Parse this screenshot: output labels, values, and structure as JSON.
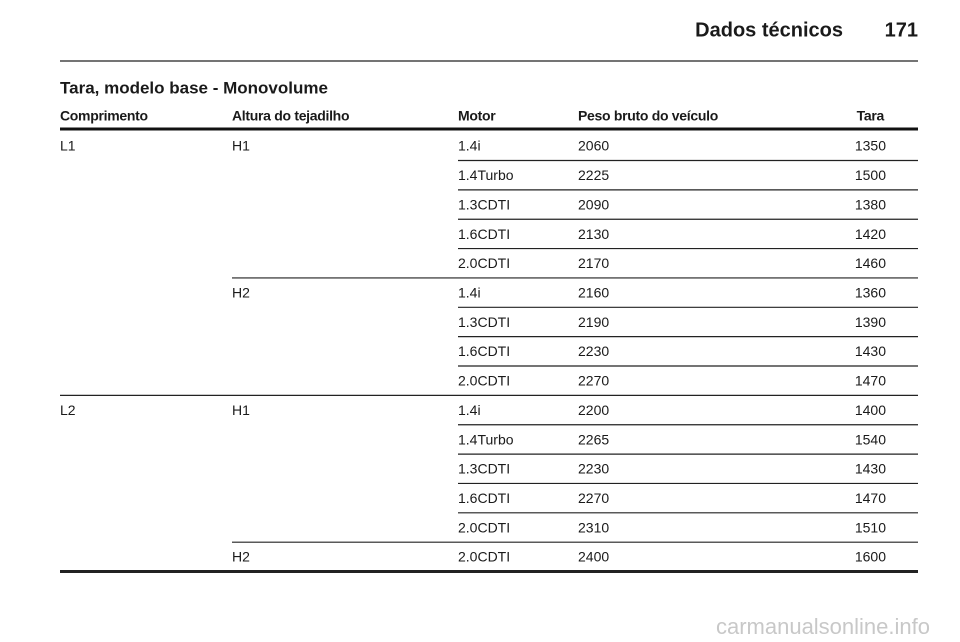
{
  "header": {
    "title": "Dados técnicos",
    "page": "171"
  },
  "section_title": "Tara, modelo base - Monovolume",
  "table": {
    "columns": [
      "Comprimento",
      "Altura do tejadilho",
      "Motor",
      "Peso bruto do veículo",
      "Tara"
    ],
    "groups": [
      {
        "length": "L1",
        "heights": [
          {
            "height": "H1",
            "rows": [
              [
                "1.4i",
                2060,
                1350
              ],
              [
                "1.4Turbo",
                2225,
                1500
              ],
              [
                "1.3CDTI",
                2090,
                1380
              ],
              [
                "1.6CDTI",
                2130,
                1420
              ],
              [
                "2.0CDTI",
                2170,
                1460
              ]
            ]
          },
          {
            "height": "H2",
            "rows": [
              [
                "1.4i",
                2160,
                1360
              ],
              [
                "1.3CDTI",
                2190,
                1390
              ],
              [
                "1.6CDTI",
                2230,
                1430
              ],
              [
                "2.0CDTI",
                2270,
                1470
              ]
            ]
          }
        ]
      },
      {
        "length": "L2",
        "heights": [
          {
            "height": "H1",
            "rows": [
              [
                "1.4i",
                2200,
                1400
              ],
              [
                "1.4Turbo",
                2265,
                1540
              ],
              [
                "1.3CDTI",
                2230,
                1430
              ],
              [
                "1.6CDTI",
                2270,
                1470
              ],
              [
                "2.0CDTI",
                2310,
                1510
              ]
            ]
          },
          {
            "height": "H2",
            "rows": [
              [
                "2.0CDTI",
                2400,
                1600
              ]
            ]
          }
        ]
      }
    ]
  },
  "watermark": "carmanualsonline.info"
}
